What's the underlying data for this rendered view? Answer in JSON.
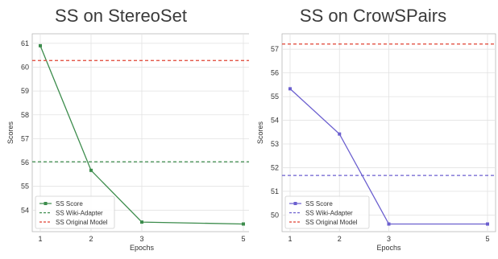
{
  "chart_data": [
    {
      "type": "line",
      "title": "SS on StereoSet",
      "xlabel": "Epochs",
      "ylabel": "Scores",
      "categories": [
        "1",
        "2",
        "3",
        "5"
      ],
      "yticks": [
        54,
        55,
        56,
        57,
        58,
        59,
        60,
        61
      ],
      "ylim": [
        53.2,
        61.3
      ],
      "grid": true,
      "legend_position": "bottom-left",
      "series": [
        {
          "name": "SS Score",
          "values": [
            60.9,
            55.67,
            53.5,
            53.42
          ],
          "color": "#3c8c4c",
          "style": "solid-marker"
        },
        {
          "name": "SS Wiki-Adapter",
          "values": [
            56.03,
            56.03,
            56.03,
            56.03
          ],
          "color": "#3c8c4c",
          "style": "dashed"
        },
        {
          "name": "SS Original Model",
          "values": [
            60.28,
            60.28,
            60.28,
            60.28
          ],
          "color": "#e04030",
          "style": "dashed"
        }
      ]
    },
    {
      "type": "line",
      "title": "SS on CrowSPairs",
      "xlabel": "Epochs",
      "ylabel": "Scores",
      "categories": [
        "1",
        "2",
        "3",
        "5"
      ],
      "yticks": [
        50,
        51,
        52,
        53,
        54,
        55,
        56,
        57
      ],
      "ylim": [
        49.4,
        57.55
      ],
      "grid": true,
      "legend_position": "bottom-left",
      "series": [
        {
          "name": "SS Score",
          "values": [
            55.33,
            53.42,
            49.62,
            49.62
          ],
          "color": "#6b5fcf",
          "style": "solid-marker"
        },
        {
          "name": "SS Wiki-Adapter",
          "values": [
            51.67,
            51.67,
            51.67,
            51.67
          ],
          "color": "#6b5fcf",
          "style": "dashed"
        },
        {
          "name": "SS Original Model",
          "values": [
            57.22,
            57.22,
            57.22,
            57.22
          ],
          "color": "#e04030",
          "style": "dashed"
        }
      ]
    }
  ]
}
